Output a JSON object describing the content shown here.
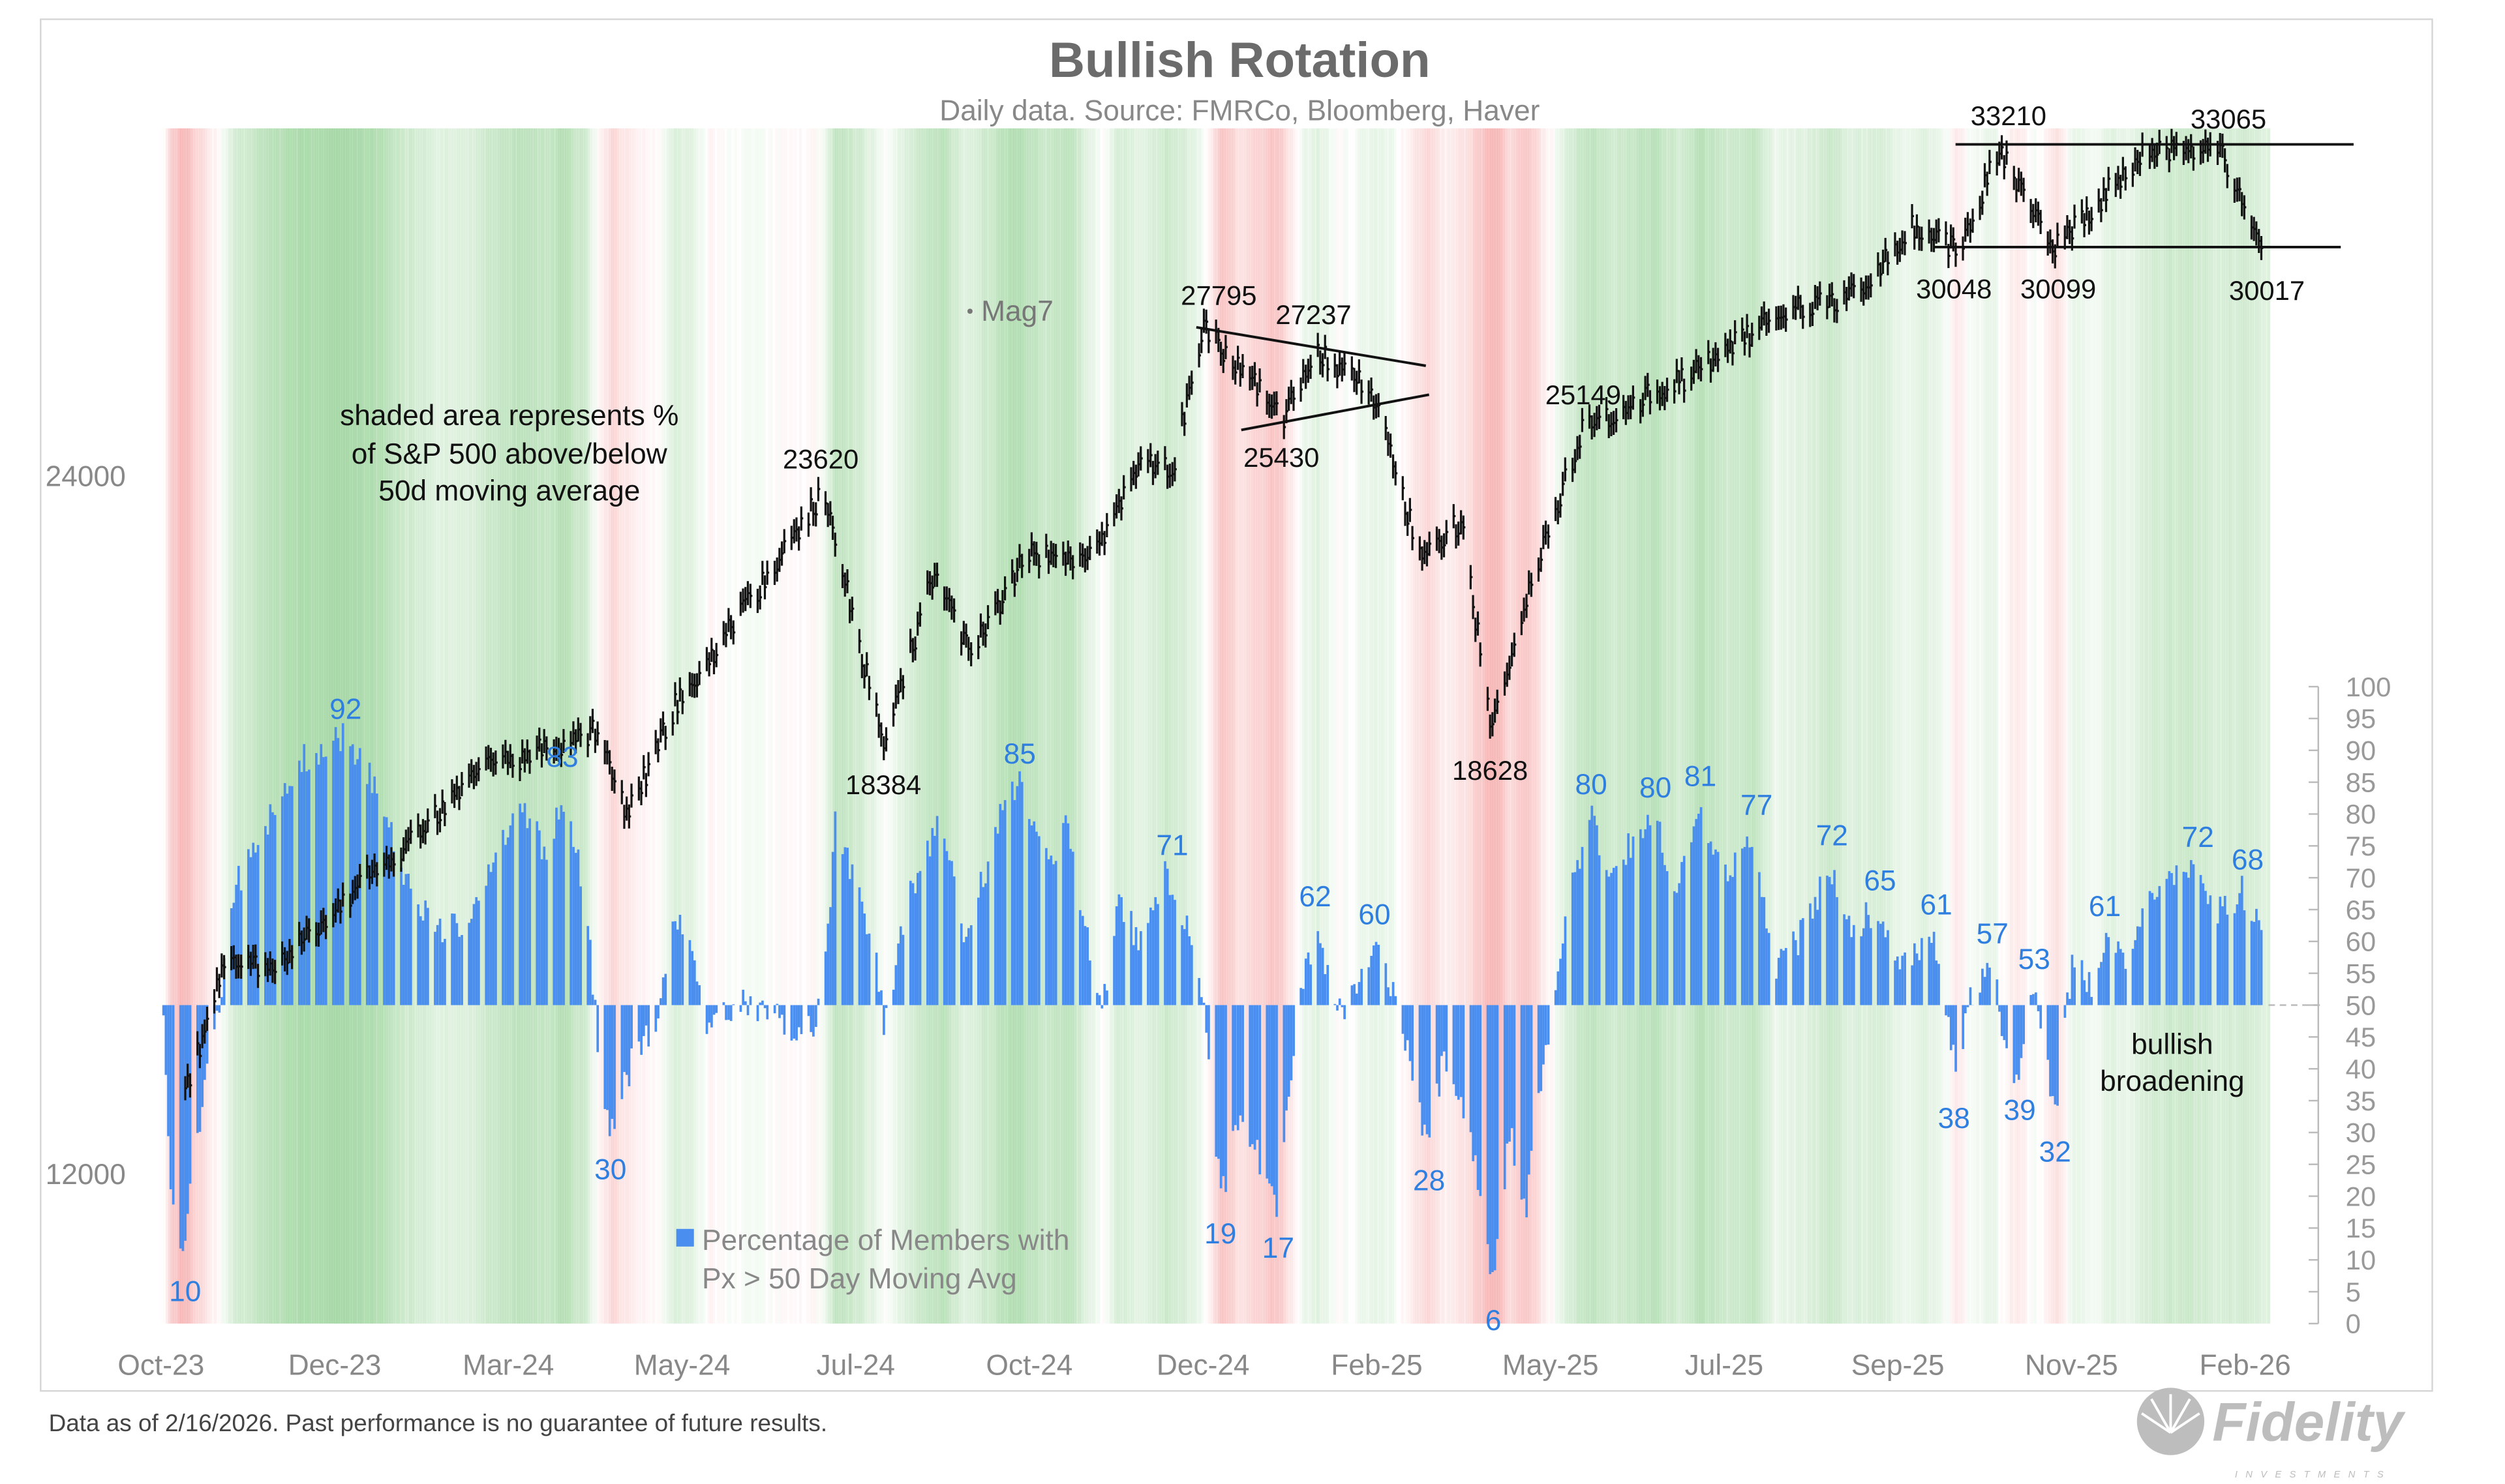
{
  "chart_data": {
    "type": "combo",
    "title": "Bullish Rotation",
    "subtitle": "Daily data.  Source: FMRCo, Bloomberg, Haver",
    "footnote": "Data as of 2/16/2026. Past performance is no guarantee of future results.",
    "logo_text": "Fidelity INVESTMENTS",
    "x_tick_labels": [
      "Oct-23",
      "Dec-23",
      "Mar-24",
      "May-24",
      "Jul-24",
      "Oct-24",
      "Dec-24",
      "Feb-25",
      "May-25",
      "Jul-25",
      "Sep-25",
      "Nov-25",
      "Feb-26"
    ],
    "left_axis": {
      "scale": "log",
      "tick_labels": [
        "24000",
        "12000"
      ],
      "ticks": [
        24000,
        12000
      ]
    },
    "right_axis": {
      "scale": "linear",
      "range": [
        0,
        100
      ],
      "step": 5,
      "tick_labels": [
        "100",
        "95",
        "90",
        "85",
        "80",
        "75",
        "70",
        "65",
        "60",
        "55",
        "50",
        "45",
        "40",
        "35",
        "30",
        "25",
        "20",
        "15",
        "10",
        "5",
        "0"
      ]
    },
    "background": "shaded area represents % of S&P 500 above/below 50d moving average; green above 50, red below 50",
    "colors": {
      "price": "#111111",
      "bars": "#4a8fef",
      "above": "#5cb85c",
      "below": "#f08080",
      "breadth_labels": "#2f7fe0"
    },
    "annotation_note": [
      "shaded area represents %",
      "of S&P 500 above/below",
      "50d moving average"
    ],
    "broadening_note": [
      "bullish",
      "broadening"
    ],
    "series": [
      {
        "name": "Mag7",
        "type": "ohlc",
        "axis": "left",
        "points": [
          [
            "2023-10-11",
            13000
          ],
          [
            "2023-10-27",
            14800
          ],
          [
            "2023-11-20",
            14800
          ],
          [
            "2023-12-16",
            15800
          ],
          [
            "2024-01-15",
            16800
          ],
          [
            "2024-02-10",
            17900
          ],
          [
            "2024-03-28",
            18650
          ],
          [
            "2024-04-10",
            17100
          ],
          [
            "2024-04-30",
            19100
          ],
          [
            "2024-06-02",
            21400
          ],
          [
            "2024-06-30",
            23620
          ],
          [
            "2024-07-25",
            18384
          ],
          [
            "2024-08-14",
            21700
          ],
          [
            "2024-08-30",
            20200
          ],
          [
            "2024-09-22",
            22200
          ],
          [
            "2024-10-19",
            22200
          ],
          [
            "2024-11-08",
            24460
          ],
          [
            "2024-11-21",
            24200
          ],
          [
            "2024-12-04",
            27795
          ],
          [
            "2025-01-06",
            25430
          ],
          [
            "2025-01-20",
            27237
          ],
          [
            "2025-02-12",
            26000
          ],
          [
            "2025-03-04",
            22000
          ],
          [
            "2025-03-20",
            23000
          ],
          [
            "2025-04-02",
            18628
          ],
          [
            "2025-04-19",
            21800
          ],
          [
            "2025-05-09",
            25149
          ],
          [
            "2025-06-21",
            26500
          ],
          [
            "2025-07-30",
            28290
          ],
          [
            "2025-09-02",
            28800
          ],
          [
            "2025-09-21",
            30800
          ],
          [
            "2025-10-11",
            30048
          ],
          [
            "2025-10-28",
            33210
          ],
          [
            "2025-11-20",
            30099
          ],
          [
            "2025-12-26",
            33100
          ],
          [
            "2026-01-28",
            33065
          ],
          [
            "2026-02-14",
            30017
          ]
        ]
      },
      {
        "name": "Percentage of Members with Px > 50 Day Moving Avg",
        "type": "bar",
        "axis": "right",
        "baseline": 50,
        "points": [
          [
            "2023-10-02",
            50
          ],
          [
            "2023-10-05",
            22
          ],
          [
            "2023-10-10",
            10
          ],
          [
            "2023-10-16",
            30
          ],
          [
            "2023-10-23",
            45
          ],
          [
            "2023-10-26",
            52
          ],
          [
            "2023-10-31",
            68
          ],
          [
            "2023-11-13",
            78
          ],
          [
            "2023-11-26",
            88
          ],
          [
            "2023-12-16",
            92
          ],
          [
            "2023-12-29",
            84
          ],
          [
            "2024-01-08",
            72
          ],
          [
            "2024-01-22",
            62
          ],
          [
            "2024-02-04",
            63
          ],
          [
            "2024-02-17",
            76
          ],
          [
            "2024-02-27",
            80
          ],
          [
            "2024-03-08",
            74
          ],
          [
            "2024-03-14",
            83
          ],
          [
            "2024-03-24",
            68
          ],
          [
            "2024-03-29",
            44
          ],
          [
            "2024-04-03",
            30
          ],
          [
            "2024-04-13",
            42
          ],
          [
            "2024-04-23",
            48
          ],
          [
            "2024-04-30",
            64
          ],
          [
            "2024-05-08",
            58
          ],
          [
            "2024-05-14",
            45
          ],
          [
            "2024-05-26",
            51
          ],
          [
            "2024-06-15",
            47
          ],
          [
            "2024-06-25",
            46
          ],
          [
            "2024-06-30",
            52
          ],
          [
            "2024-07-05",
            78
          ],
          [
            "2024-07-13",
            70
          ],
          [
            "2024-07-22",
            56
          ],
          [
            "2024-07-25",
            47
          ],
          [
            "2024-08-04",
            66
          ],
          [
            "2024-08-17",
            80
          ],
          [
            "2024-08-27",
            62
          ],
          [
            "2024-09-06",
            72
          ],
          [
            "2024-09-12",
            81
          ],
          [
            "2024-09-19",
            85
          ],
          [
            "2024-09-29",
            72
          ],
          [
            "2024-10-09",
            78
          ],
          [
            "2024-10-19",
            56
          ],
          [
            "2024-10-23",
            48
          ],
          [
            "2024-10-29",
            66
          ],
          [
            "2024-11-08",
            60
          ],
          [
            "2024-11-18",
            71
          ],
          [
            "2024-11-28",
            62
          ],
          [
            "2024-12-04",
            50
          ],
          [
            "2024-12-11",
            19
          ],
          [
            "2024-12-19",
            34
          ],
          [
            "2024-12-25",
            28
          ],
          [
            "2025-01-03",
            17
          ],
          [
            "2025-01-10",
            44
          ],
          [
            "2025-01-14",
            55
          ],
          [
            "2025-01-20",
            62
          ],
          [
            "2025-01-27",
            48
          ],
          [
            "2025-02-05",
            52
          ],
          [
            "2025-02-12",
            60
          ],
          [
            "2025-02-20",
            52
          ],
          [
            "2025-02-25",
            44
          ],
          [
            "2025-03-06",
            28
          ],
          [
            "2025-03-13",
            42
          ],
          [
            "2025-03-21",
            34
          ],
          [
            "2025-03-28",
            20
          ],
          [
            "2025-04-02",
            6
          ],
          [
            "2025-04-09",
            30
          ],
          [
            "2025-04-16",
            18
          ],
          [
            "2025-04-22",
            38
          ],
          [
            "2025-04-27",
            50
          ],
          [
            "2025-05-04",
            68
          ],
          [
            "2025-05-13",
            80
          ],
          [
            "2025-05-20",
            68
          ],
          [
            "2025-05-27",
            74
          ],
          [
            "2025-06-07",
            80
          ],
          [
            "2025-06-17",
            68
          ],
          [
            "2025-06-27",
            81
          ],
          [
            "2025-07-07",
            70
          ],
          [
            "2025-07-19",
            77
          ],
          [
            "2025-07-27",
            56
          ],
          [
            "2025-08-06",
            60
          ],
          [
            "2025-08-19",
            72
          ],
          [
            "2025-08-27",
            62
          ],
          [
            "2025-09-08",
            65
          ],
          [
            "2025-09-18",
            57
          ],
          [
            "2025-10-01",
            61
          ],
          [
            "2025-10-07",
            48
          ],
          [
            "2025-10-10",
            38
          ],
          [
            "2025-10-15",
            50
          ],
          [
            "2025-10-25",
            57
          ],
          [
            "2025-10-31",
            42
          ],
          [
            "2025-11-05",
            39
          ],
          [
            "2025-11-11",
            53
          ],
          [
            "2025-11-16",
            42
          ],
          [
            "2025-11-20",
            32
          ],
          [
            "2025-11-24",
            48
          ],
          [
            "2025-11-28",
            58
          ],
          [
            "2025-12-06",
            52
          ],
          [
            "2025-12-11",
            61
          ],
          [
            "2025-12-19",
            58
          ],
          [
            "2025-12-29",
            66
          ],
          [
            "2026-01-08",
            71
          ],
          [
            "2026-01-15",
            72
          ],
          [
            "2026-01-25",
            64
          ],
          [
            "2026-02-05",
            68
          ],
          [
            "2026-02-14",
            62
          ]
        ]
      }
    ],
    "price_annotations": [
      "33210",
      "33065",
      "30048",
      "30099",
      "30017",
      "27795",
      "27237",
      "25430",
      "25149",
      "23620",
      "18384",
      "18628"
    ],
    "breadth_annotations": [
      "92",
      "83",
      "10",
      "30",
      "85",
      "71",
      "19",
      "17",
      "62",
      "60",
      "28",
      "6",
      "80",
      "80",
      "81",
      "77",
      "72",
      "65",
      "61",
      "57",
      "53",
      "38",
      "39",
      "32",
      "61",
      "72",
      "68"
    ]
  }
}
